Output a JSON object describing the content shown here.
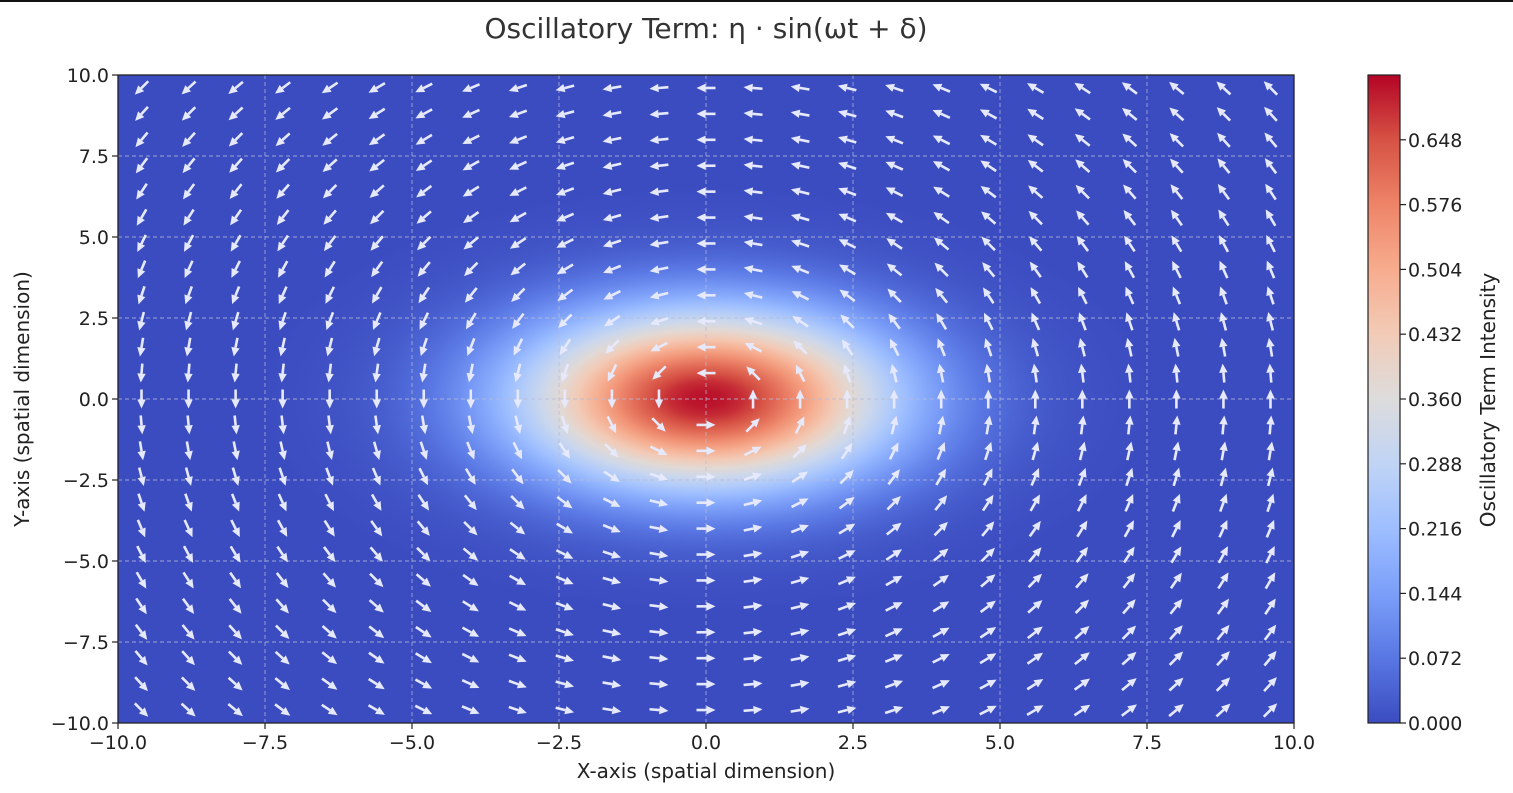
{
  "chart_data": {
    "type": "heatmap",
    "title": "Oscillatory Term: η · sin(ωt + δ)",
    "xlabel": "X-axis (spatial dimension)",
    "ylabel": "Y-axis (spatial dimension)",
    "xlim": [
      -10,
      10
    ],
    "ylim": [
      -10,
      10
    ],
    "xticks": [
      "−10.0",
      "−7.5",
      "−5.0",
      "−2.5",
      "0.0",
      "2.5",
      "5.0",
      "7.5",
      "10.0"
    ],
    "yticks": [
      "10.0",
      "7.5",
      "5.0",
      "2.5",
      "0.0",
      "−2.5",
      "−5.0",
      "−7.5",
      "−10.0"
    ],
    "xtick_values": [
      -10,
      -7.5,
      -5,
      -2.5,
      0,
      2.5,
      5,
      7.5,
      10
    ],
    "ytick_values": [
      10,
      7.5,
      5,
      2.5,
      0,
      -2.5,
      -5,
      -7.5,
      -10
    ],
    "grid": true,
    "grid_style": "dashed",
    "surface": {
      "form": "gaussian",
      "center": [
        0,
        0
      ],
      "peak": 0.71,
      "sigma_x": 2.2,
      "sigma_y": 1.9
    },
    "vector_field": {
      "type": "quiver",
      "color": "#e6e9fb",
      "x_start": -9.6,
      "x_end": 9.6,
      "x_count": 25,
      "y_start": 9.6,
      "y_end": -9.6,
      "y_count": 25,
      "description_field": "tangent"
    },
    "colorbar": {
      "label": "Oscillatory Term Intensity",
      "min": 0,
      "max": 0.72,
      "ticks": [
        "0.000",
        "0.072",
        "0.144",
        "0.216",
        "0.288",
        "0.360",
        "0.432",
        "0.504",
        "0.576",
        "0.648"
      ],
      "tick_values": [
        0,
        0.072,
        0.144,
        0.216,
        0.288,
        0.36,
        0.432,
        0.504,
        0.576,
        0.648
      ],
      "colormap": "coolwarm",
      "colors": [
        "#3b4cc0",
        "#5977e3",
        "#7b9ff9",
        "#9ebeff",
        "#c0d4f5",
        "#dddcdc",
        "#f2cbb7",
        "#f7ac8e",
        "#ee8468",
        "#d65244",
        "#b40426"
      ]
    }
  }
}
